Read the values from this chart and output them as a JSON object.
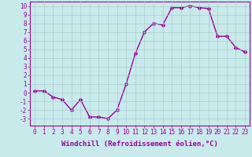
{
  "x": [
    0,
    1,
    2,
    3,
    4,
    5,
    6,
    7,
    8,
    9,
    10,
    11,
    12,
    13,
    14,
    15,
    16,
    17,
    18,
    19,
    20,
    21,
    22,
    23
  ],
  "y": [
    0.2,
    0.2,
    -0.5,
    -0.8,
    -2.0,
    -0.8,
    -2.8,
    -2.8,
    -3.0,
    -2.0,
    1.0,
    4.5,
    7.0,
    8.0,
    7.8,
    9.8,
    9.8,
    10.0,
    9.8,
    9.7,
    6.5,
    6.5,
    5.2,
    4.7
  ],
  "line_color": "#990099",
  "marker": "D",
  "marker_size": 2.0,
  "bg_color": "#c8eaea",
  "grid_color": "#aacccc",
  "xlabel": "Windchill (Refroidissement éolien,°C)",
  "yticks": [
    -3,
    -2,
    -1,
    0,
    1,
    2,
    3,
    4,
    5,
    6,
    7,
    8,
    9,
    10
  ],
  "ylabel_ticks": [
    "-3",
    "-2",
    "-1",
    "0",
    "1",
    "2",
    "3",
    "4",
    "5",
    "6",
    "7",
    "8",
    "9",
    "10"
  ],
  "ylim": [
    -3.8,
    10.5
  ],
  "xlim": [
    -0.5,
    23.5
  ],
  "xticks": [
    0,
    1,
    2,
    3,
    4,
    5,
    6,
    7,
    8,
    9,
    10,
    11,
    12,
    13,
    14,
    15,
    16,
    17,
    18,
    19,
    20,
    21,
    22,
    23
  ],
  "linewidth": 1.0,
  "tick_fontsize": 5.5,
  "xlabel_fontsize": 6.5
}
